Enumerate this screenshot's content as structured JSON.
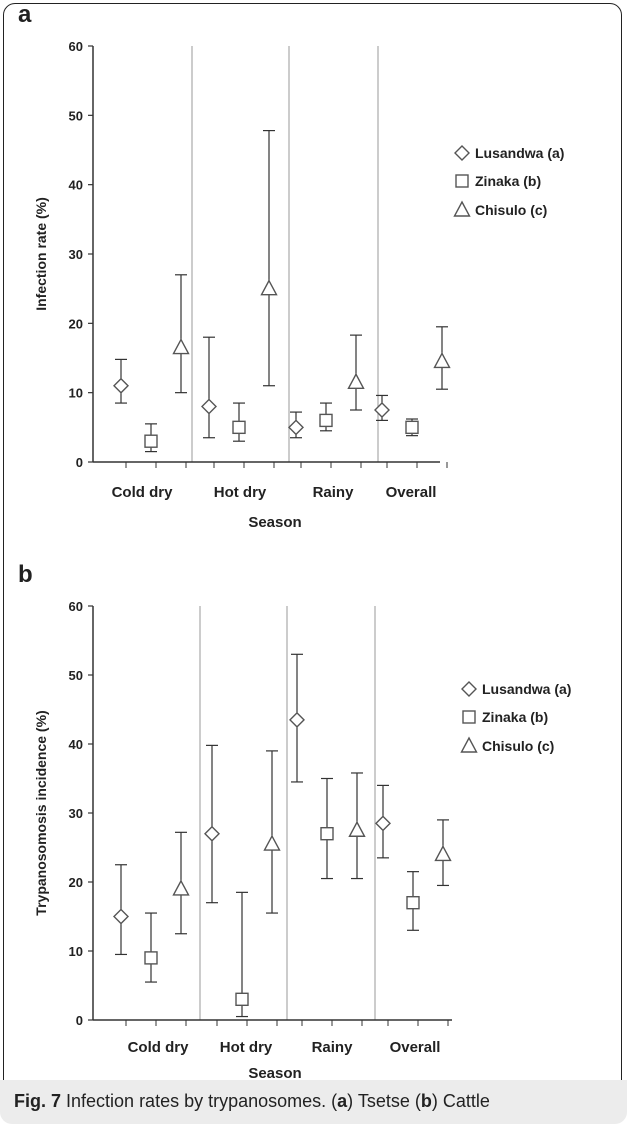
{
  "chart_data": [
    {
      "type": "scatter",
      "panel_label": "a",
      "ylabel": "Infection rate (%)",
      "xlabel": "Season",
      "ylim": [
        0,
        60
      ],
      "yticks": [
        0,
        10,
        20,
        30,
        40,
        50,
        60
      ],
      "categories": [
        "Cold dry",
        "Hot dry",
        "Rainy",
        "Overall"
      ],
      "legend_placement": "right",
      "series": [
        {
          "name": "Lusandwa (a)",
          "marker": "diamond",
          "values": [
            11,
            8,
            5,
            7.5
          ],
          "lower": [
            8.5,
            3.5,
            3.5,
            6
          ],
          "upper": [
            14.8,
            18,
            7.2,
            9.6
          ]
        },
        {
          "name": "Zinaka (b)",
          "marker": "square",
          "values": [
            3,
            5,
            6,
            5
          ],
          "lower": [
            1.5,
            3,
            4.5,
            3.8
          ],
          "upper": [
            5.5,
            8.5,
            8.5,
            6.2
          ]
        },
        {
          "name": "Chisulo (c)",
          "marker": "triangle",
          "values": [
            16.5,
            25,
            11.5,
            14.5
          ],
          "lower": [
            10,
            11,
            7.5,
            10.5
          ],
          "upper": [
            27,
            47.8,
            18.3,
            19.5
          ]
        }
      ]
    },
    {
      "type": "scatter",
      "panel_label": "b",
      "ylabel": "Trypanosomosis incidence (%)",
      "xlabel": "Season",
      "ylim": [
        0,
        60
      ],
      "yticks": [
        0,
        10,
        20,
        30,
        40,
        50,
        60
      ],
      "categories": [
        "Cold dry",
        "Hot dry",
        "Rainy",
        "Overall"
      ],
      "legend_placement": "right",
      "series": [
        {
          "name": "Lusandwa (a)",
          "marker": "diamond",
          "values": [
            15,
            27,
            43.5,
            28.5
          ],
          "lower": [
            9.5,
            17,
            34.5,
            23.5
          ],
          "upper": [
            22.5,
            39.8,
            53,
            34
          ]
        },
        {
          "name": "Zinaka (b)",
          "marker": "square",
          "values": [
            9,
            3,
            27,
            17
          ],
          "lower": [
            5.5,
            0.5,
            20.5,
            13
          ],
          "upper": [
            15.5,
            18.5,
            35,
            21.5
          ]
        },
        {
          "name": "Chisulo (c)",
          "marker": "triangle",
          "values": [
            19,
            25.5,
            27.5,
            24
          ],
          "lower": [
            12.5,
            15.5,
            20.5,
            19.5
          ],
          "upper": [
            27.2,
            39,
            35.8,
            29
          ]
        }
      ]
    }
  ],
  "caption": {
    "prefix": "Fig. 7",
    "text": " Infection rates by trypanosomes. (",
    "a": "a",
    "mid": ") Tsetse (",
    "b": "b",
    "end": ") Cattle"
  },
  "colors": {
    "axis": "#333333",
    "marker": "#555555",
    "divider": "#aaaaaa"
  }
}
